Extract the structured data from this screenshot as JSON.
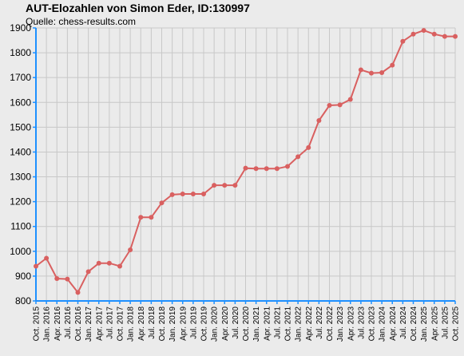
{
  "chart_data": {
    "type": "line",
    "title": "AUT-Elozahlen von Simon Eder, ID:130997",
    "subtitle": "Quelle: chess-results.com",
    "xlabel": "",
    "ylabel": "",
    "ylim": [
      800,
      1900
    ],
    "yticks": [
      800,
      900,
      1000,
      1100,
      1200,
      1300,
      1400,
      1500,
      1600,
      1700,
      1800,
      1900
    ],
    "grid": true,
    "colors": {
      "line": "#d96060",
      "grid": "#c8c8c8",
      "axis": "#1e90ff",
      "background": "#ebebeb"
    },
    "x": [
      "Oct. 2015",
      "Jan. 2016",
      "Apr. 2016",
      "Jul. 2016",
      "Oct. 2016",
      "Jan. 2017",
      "Apr. 2017",
      "Jul. 2017",
      "Oct. 2017",
      "Jan. 2018",
      "Apr. 2018",
      "Jul. 2018",
      "Oct. 2018",
      "Jan. 2019",
      "Apr. 2019",
      "Jul. 2019",
      "Oct. 2019",
      "Jan. 2020",
      "Apr. 2020",
      "Jul. 2020",
      "Oct. 2020",
      "Jan. 2021",
      "Apr. 2021",
      "Jul. 2021",
      "Oct. 2021",
      "Jan. 2022",
      "Apr. 2022",
      "Jul. 2022",
      "Oct. 2022",
      "Jan. 2023",
      "Apr. 2023",
      "Jul. 2023",
      "Oct. 2023",
      "Jan. 2024",
      "Apr. 2024",
      "Jul. 2024",
      "Oct. 2024",
      "Jan. 2025",
      "Apr. 2025",
      "Jul. 2025",
      "Oct. 2025"
    ],
    "series": [
      {
        "values": [
          940,
          972,
          890,
          888,
          834,
          918,
          952,
          952,
          940,
          1006,
          1137,
          1137,
          1195,
          1228,
          1231,
          1231,
          1231,
          1266,
          1266,
          1266,
          1335,
          1333,
          1333,
          1333,
          1342,
          1381,
          1418,
          1527,
          1588,
          1590,
          1612,
          1731,
          1718,
          1720,
          1750,
          1846,
          1875,
          1890,
          1875,
          1866,
          1866
        ]
      }
    ]
  }
}
